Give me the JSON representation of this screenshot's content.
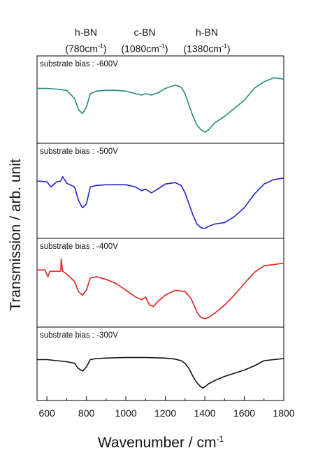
{
  "peak_labels": [
    {
      "name": "h-BN",
      "position": "(780cm",
      "exp": "-1",
      "close": ")"
    },
    {
      "name": "c-BN",
      "position": "(1080cm",
      "exp": "-1",
      "close": ")"
    },
    {
      "name": "h-BN",
      "position": "(1380cm",
      "exp": "-1",
      "close": ")"
    }
  ],
  "chart_data": {
    "type": "line",
    "xlabel": "Wavenumber / cm",
    "xlabel_exp": "-1",
    "ylabel": "Transmission / arb. unit",
    "xlim": [
      550,
      1800
    ],
    "xticks": [
      600,
      800,
      1000,
      1200,
      1400,
      1600,
      1800
    ],
    "ylim": [
      0,
      100
    ],
    "grid": false,
    "panels": [
      {
        "label": "substrate bias : -600V",
        "color": "#1f8a80",
        "x": [
          550,
          600,
          650,
          700,
          740,
          760,
          780,
          800,
          820,
          850,
          900,
          950,
          1000,
          1050,
          1080,
          1100,
          1130,
          1160,
          1200,
          1250,
          1280,
          1300,
          1320,
          1340,
          1360,
          1380,
          1400,
          1420,
          1450,
          1500,
          1550,
          1600,
          1650,
          1700,
          1750,
          1800
        ],
        "y": [
          70,
          70,
          69,
          67,
          55,
          38,
          32,
          42,
          62,
          66,
          67,
          67,
          66,
          62,
          60,
          62,
          60,
          63,
          70,
          75,
          72,
          62,
          45,
          28,
          15,
          8,
          4,
          8,
          18,
          28,
          40,
          52,
          70,
          80,
          86,
          84
        ]
      },
      {
        "label": "substrate bias : -500V",
        "color": "#1f22d6",
        "x": [
          550,
          600,
          620,
          650,
          670,
          680,
          700,
          740,
          760,
          780,
          800,
          820,
          850,
          900,
          950,
          1000,
          1050,
          1080,
          1100,
          1130,
          1160,
          1200,
          1250,
          1280,
          1300,
          1320,
          1340,
          1360,
          1380,
          1400,
          1420,
          1450,
          1500,
          1550,
          1600,
          1650,
          1700,
          1750,
          1800
        ],
        "y": [
          66,
          65,
          58,
          65,
          66,
          72,
          63,
          58,
          40,
          30,
          35,
          58,
          60,
          61,
          61,
          61,
          58,
          53,
          55,
          50,
          55,
          62,
          64,
          60,
          50,
          35,
          20,
          8,
          3,
          2,
          5,
          8,
          10,
          18,
          30,
          48,
          62,
          68,
          70
        ]
      },
      {
        "label": "substrate bias : -400V",
        "color": "#e01f1f",
        "x": [
          550,
          590,
          605,
          615,
          650,
          670,
          672,
          680,
          700,
          740,
          760,
          780,
          800,
          820,
          850,
          900,
          950,
          1000,
          1050,
          1080,
          1100,
          1120,
          1140,
          1160,
          1200,
          1250,
          1300,
          1330,
          1360,
          1380,
          1400,
          1420,
          1450,
          1500,
          1550,
          1600,
          1650,
          1700,
          1750,
          1800
        ],
        "y": [
          72,
          72,
          62,
          70,
          70,
          70,
          88,
          70,
          66,
          55,
          40,
          35,
          42,
          60,
          62,
          58,
          52,
          42,
          32,
          28,
          32,
          20,
          18,
          25,
          35,
          42,
          40,
          30,
          10,
          2,
          0,
          2,
          8,
          20,
          35,
          52,
          68,
          78,
          80,
          82
        ]
      },
      {
        "label": "substrate bias : -300V",
        "color": "#111111",
        "x": [
          550,
          600,
          650,
          700,
          740,
          760,
          780,
          800,
          820,
          850,
          900,
          1000,
          1100,
          1200,
          1250,
          1280,
          1300,
          1320,
          1340,
          1360,
          1380,
          1390,
          1400,
          1420,
          1450,
          1500,
          1550,
          1600,
          1650,
          1700,
          1750,
          1800
        ],
        "y": [
          62,
          62,
          60,
          58,
          55,
          45,
          40,
          48,
          62,
          64,
          65,
          66,
          66,
          65,
          63,
          60,
          55,
          45,
          30,
          18,
          10,
          8,
          10,
          16,
          22,
          30,
          36,
          42,
          50,
          60,
          62,
          64
        ]
      }
    ]
  }
}
